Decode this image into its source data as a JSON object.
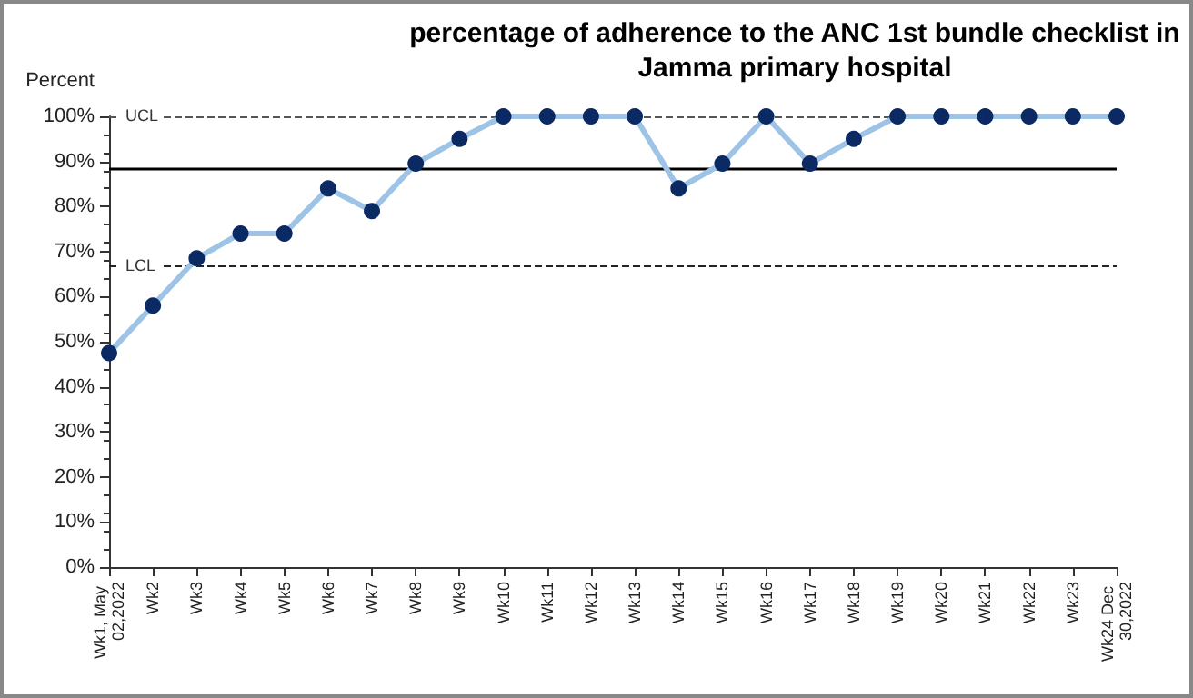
{
  "chart_data": {
    "type": "line",
    "title": "percentage of adherence to the ANC 1st bundle checklist in\nJamma primary hospital",
    "ylabel": "Percent",
    "categories": [
      "Wk1, May 02,2022",
      "Wk2",
      "Wk3",
      "Wk4",
      "Wk5",
      "Wk6",
      "Wk7",
      "Wk8",
      "Wk9",
      "Wk10",
      "Wk11",
      "Wk12",
      "Wk13",
      "Wk14",
      "Wk15",
      "Wk16",
      "Wk17",
      "Wk18",
      "Wk19",
      "Wk20",
      "Wk21",
      "Wk22",
      "Wk23",
      "Wk24 Dec 30,2022"
    ],
    "series": [
      {
        "color": "#9dc3e6",
        "colors": [
          "#0b2a63",
          "#0b2a63",
          "#0b2a63",
          "#0b2a63",
          "#0b2a63",
          "#0b2a63",
          "#0b2a63",
          "#0b2a63",
          "#0b2a63",
          "#0b2a63",
          "#0b2a63",
          "#0b2a63",
          "#0b2a63",
          "#0b2a63",
          "#0b2a63",
          "#0b2a63",
          "#0b2a63",
          "#0b2a63",
          "#0b2a63",
          "#0b2a63",
          "#0b2a63",
          "#0b2a63",
          "#0b2a63",
          "#0b2a63"
        ],
        "values": [
          47.5,
          58,
          68.5,
          74,
          74,
          84,
          79,
          89.5,
          95,
          100,
          100,
          100,
          100,
          84,
          89.5,
          100,
          89.5,
          95,
          100,
          100,
          100,
          100,
          100,
          100
        ]
      }
    ],
    "ylim": [
      0,
      100
    ],
    "yticks": [
      {
        "value": 0,
        "label": "0%"
      },
      {
        "value": 10,
        "label": "10%"
      },
      {
        "value": 20,
        "label": "20%"
      },
      {
        "value": 30,
        "label": "30%"
      },
      {
        "value": 40,
        "label": "40%"
      },
      {
        "value": 50,
        "label": "50%"
      },
      {
        "value": 60,
        "label": "60%"
      },
      {
        "value": 70,
        "label": "70%"
      },
      {
        "value": 80,
        "label": "80%"
      },
      {
        "value": 90,
        "label": "90%"
      },
      {
        "value": 100,
        "label": "100%"
      }
    ],
    "ref_lines": [
      {
        "axis": "y",
        "value": 100,
        "label": "UCL",
        "line_style": "dashed",
        "color": "#555555"
      },
      {
        "axis": "y",
        "value": 88.5,
        "line_style": "solid",
        "color": "#000000"
      },
      {
        "axis": "y",
        "value": 66.7,
        "label": "LCL",
        "line_style": "dashed",
        "color": "#222222"
      }
    ],
    "marker": "circle",
    "line_style": "solid",
    "grid": false
  }
}
